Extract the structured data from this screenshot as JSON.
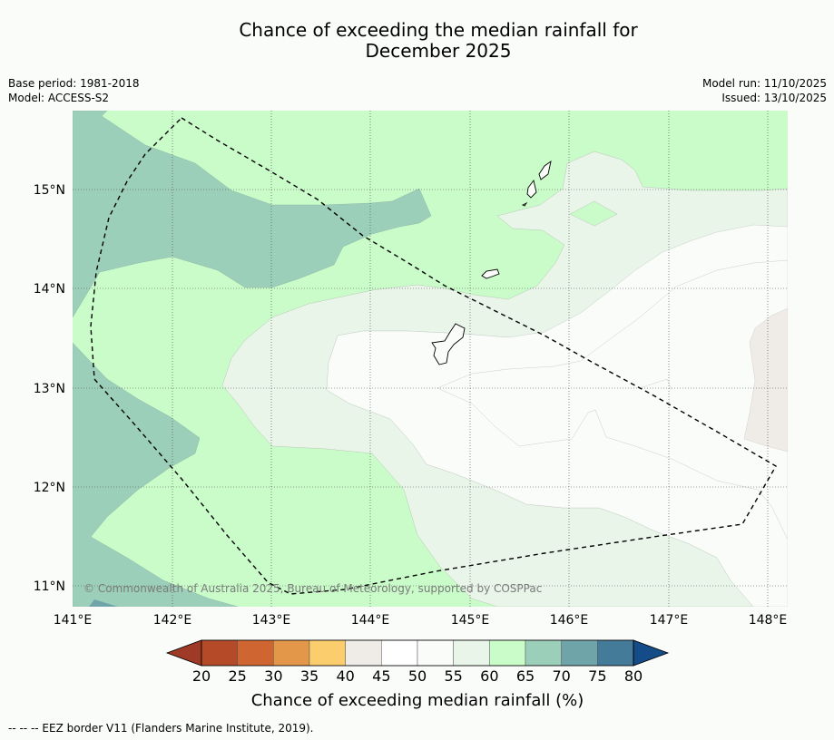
{
  "title": {
    "line1": "Chance of exceeding the median rainfall for",
    "line2": "December 2025"
  },
  "meta": {
    "base_period": "Base period: 1981-2018",
    "model": "Model: ACCESS-S2",
    "model_run": "Model run: 11/10/2025",
    "issued": "Issued: 13/10/2025"
  },
  "map": {
    "lon_labels": [
      "141°E",
      "142°E",
      "143°E",
      "144°E",
      "145°E",
      "146°E",
      "147°E",
      "148°E"
    ],
    "lat_labels": [
      "15°N",
      "14°N",
      "13°N",
      "12°N",
      "11°N"
    ],
    "copyright": "© Commonwealth of Australia 2025, Bureau of Meteorology, supported by COSPPac"
  },
  "colorbar": {
    "title": "Chance of exceeding median rainfall (%)",
    "ticks": [
      "20",
      "25",
      "30",
      "35",
      "40",
      "45",
      "50",
      "55",
      "60",
      "65",
      "70",
      "75",
      "80"
    ],
    "colors": [
      "#b44a28",
      "#cf6531",
      "#e29848",
      "#fccd6c",
      "#efebe7",
      "#ffffff",
      "#fafcfa",
      "#e8f5e8",
      "#c9fcc9",
      "#9ccfb9",
      "#6fa5a9",
      "#447b98"
    ],
    "low_extend_color": "#9e3a25",
    "high_extend_color": "#134c87"
  },
  "footnote": "--  --  -- EEZ border V11 (Flanders Marine Institute, 2019)."
}
